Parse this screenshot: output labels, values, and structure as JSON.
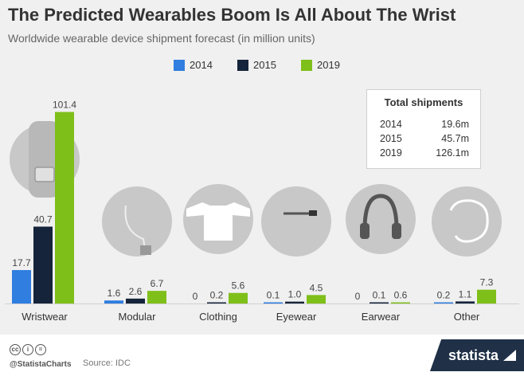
{
  "title": "The Predicted Wearables Boom Is All About The Wrist",
  "subtitle": "Worldwide wearable device shipment forecast (in million units)",
  "colors": {
    "2014": "#2f7ee0",
    "2015": "#15243b",
    "2019": "#7fbf1a",
    "silhouette": "#c8c8c8"
  },
  "chart_data": {
    "type": "bar",
    "categories": [
      "Wristwear",
      "Modular",
      "Clothing",
      "Eyewear",
      "Earwear",
      "Other"
    ],
    "series": [
      {
        "name": "2014",
        "values": [
          17.7,
          1.6,
          0,
          0.1,
          0,
          0.2
        ]
      },
      {
        "name": "2015",
        "values": [
          40.7,
          2.6,
          0.2,
          1.0,
          0.1,
          1.1
        ]
      },
      {
        "name": "2019",
        "values": [
          101.4,
          6.7,
          5.6,
          4.5,
          0.6,
          7.3
        ]
      }
    ],
    "value_labels": [
      [
        "17.7",
        "1.6",
        "0",
        "0.1",
        "0",
        "0.2"
      ],
      [
        "40.7",
        "2.6",
        "0.2",
        "1.0",
        "0.1",
        "1.1"
      ],
      [
        "101.4",
        "6.7",
        "5.6",
        "4.5",
        "0.6",
        "7.3"
      ]
    ],
    "ylim": [
      0,
      105
    ],
    "legend_position": "top-center",
    "grid": false
  },
  "totals": {
    "title": "Total shipments",
    "rows": [
      {
        "year": "2014",
        "value": "19.6m"
      },
      {
        "year": "2015",
        "value": "45.7m"
      },
      {
        "year": "2019",
        "value": "126.1m"
      }
    ]
  },
  "icons": [
    "watch-icon",
    "modular-device-icon",
    "shirt-icon",
    "glasses-icon",
    "headphones-icon",
    "brain-icon"
  ],
  "footer": {
    "handle": "@StatistaCharts",
    "source": "Source: IDC",
    "logo": "statista"
  }
}
